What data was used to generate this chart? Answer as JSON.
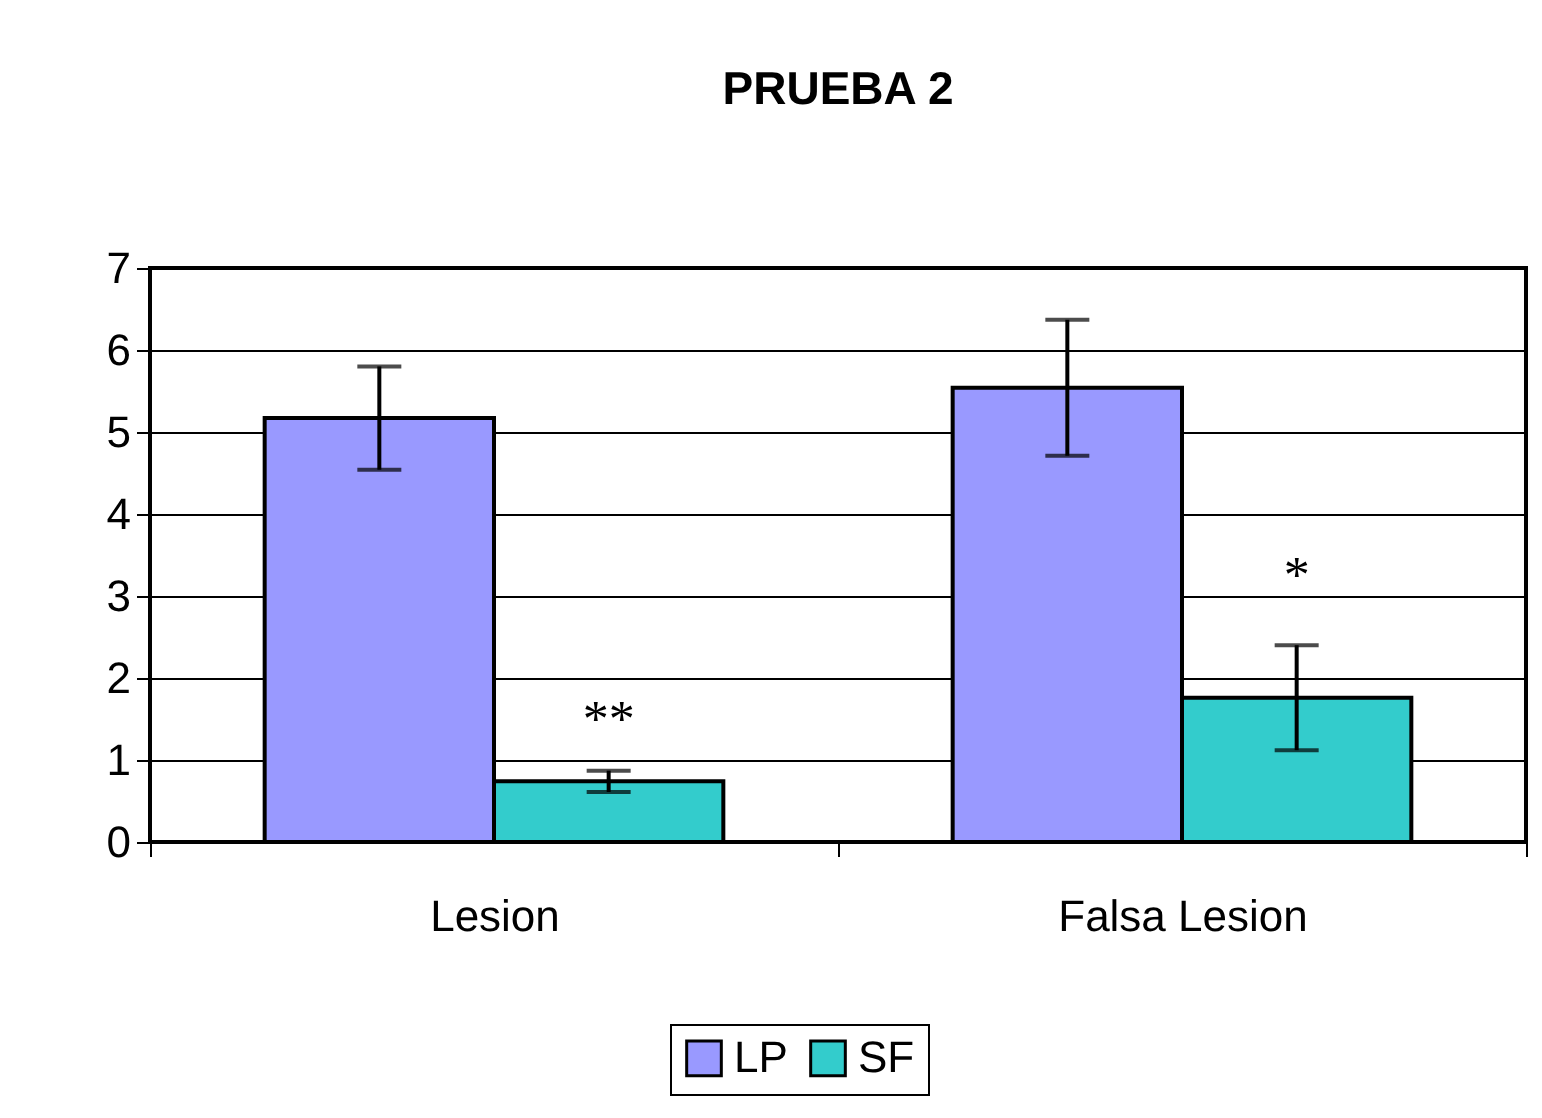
{
  "chart_data": {
    "type": "bar",
    "title": "PRUEBA 2",
    "categories": [
      "Lesion",
      "Falsa Lesion"
    ],
    "series": [
      {
        "name": "LP",
        "color": "#9999ff",
        "values": [
          5.17,
          5.54
        ],
        "errors": [
          0.63,
          0.83
        ]
      },
      {
        "name": "SF",
        "color": "#33cccc",
        "values": [
          0.74,
          1.76
        ],
        "errors": [
          0.13,
          0.64
        ]
      }
    ],
    "ylim": [
      0,
      7
    ],
    "yticks": [
      0,
      1,
      2,
      3,
      4,
      5,
      6,
      7
    ],
    "grid": "y",
    "legend": "bottom",
    "annotations": [
      {
        "text": "**",
        "x": "Lesion",
        "y": 1.49
      },
      {
        "text": "*",
        "x": "Falsa Lesion",
        "y": 3.24
      }
    ]
  }
}
